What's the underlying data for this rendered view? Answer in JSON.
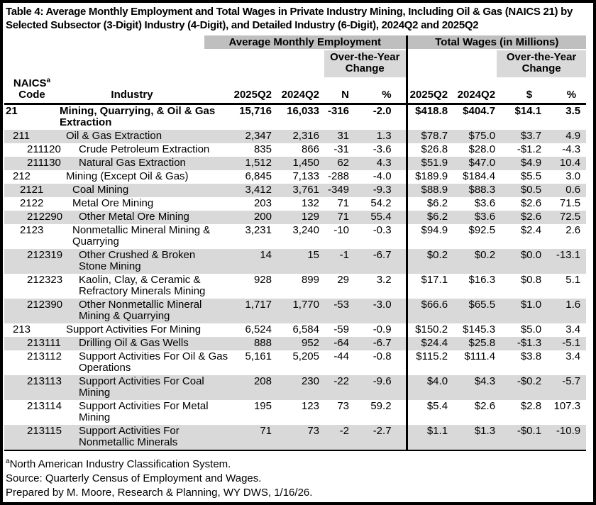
{
  "title": "Table 4: Average Monthly Employment and Total Wages in Private Industry Mining, Including Oil & Gas (NAICS 21) by Selected Subsector (3-Digit) Industry (4-Digit), and Detailed Industry (6-Digit), 2024Q2 and 2025Q2",
  "groups": {
    "employment": "Average Monthly Employment",
    "wages": "Total Wages (in Millions)",
    "oty_change": "Over-the-Year\nChange"
  },
  "header": {
    "naics": "NAICS",
    "naics_sup": "a",
    "code": "Code",
    "industry": "Industry",
    "emp_2025": "2025Q2",
    "emp_2024": "2024Q2",
    "emp_n": "N",
    "emp_pct": "%",
    "wage_2025": "2025Q2",
    "wage_2024": "2024Q2",
    "wage_dollar": "$",
    "wage_pct": "%"
  },
  "colors": {
    "band_dark": "#bfbfbf",
    "band_light": "#d9d9d9",
    "row_stripe": "#d9d9d9",
    "text": "#000000"
  },
  "rows": [
    {
      "code": "21",
      "level": 0,
      "bold": true,
      "industry": "Mining, Quarrying, & Oil & Gas\nExtraction",
      "e25": "15,716",
      "e24": "16,033",
      "n": "-316",
      "npct": "-2.0",
      "w25": "$418.8",
      "w24": "$404.7",
      "d": "$14.1",
      "dpct": "3.5"
    },
    {
      "code": "211",
      "level": 1,
      "bold": false,
      "industry": "Oil & Gas Extraction",
      "e25": "2,347",
      "e24": "2,316",
      "n": "31",
      "npct": "1.3",
      "w25": "$78.7",
      "w24": "$75.0",
      "d": "$3.7",
      "dpct": "4.9"
    },
    {
      "code": "211120",
      "level": 3,
      "bold": false,
      "industry": "Crude Petroleum Extraction",
      "e25": "835",
      "e24": "866",
      "n": "-31",
      "npct": "-3.6",
      "w25": "$26.8",
      "w24": "$28.0",
      "d": "-$1.2",
      "dpct": "-4.3"
    },
    {
      "code": "211130",
      "level": 3,
      "bold": false,
      "industry": "Natural Gas Extraction",
      "e25": "1,512",
      "e24": "1,450",
      "n": "62",
      "npct": "4.3",
      "w25": "$51.9",
      "w24": "$47.0",
      "d": "$4.9",
      "dpct": "10.4"
    },
    {
      "code": "212",
      "level": 1,
      "bold": false,
      "industry": "Mining (Except Oil & Gas)",
      "e25": "6,845",
      "e24": "7,133",
      "n": "-288",
      "npct": "-4.0",
      "w25": "$189.9",
      "w24": "$184.4",
      "d": "$5.5",
      "dpct": "3.0"
    },
    {
      "code": "2121",
      "level": 2,
      "bold": false,
      "industry": "Coal Mining",
      "e25": "3,412",
      "e24": "3,761",
      "n": "-349",
      "npct": "-9.3",
      "w25": "$88.9",
      "w24": "$88.3",
      "d": "$0.5",
      "dpct": "0.6"
    },
    {
      "code": "2122",
      "level": 2,
      "bold": false,
      "industry": "Metal Ore Mining",
      "e25": "203",
      "e24": "132",
      "n": "71",
      "npct": "54.2",
      "w25": "$6.2",
      "w24": "$3.6",
      "d": "$2.6",
      "dpct": "71.5"
    },
    {
      "code": "212290",
      "level": 3,
      "bold": false,
      "industry": "Other Metal Ore Mining",
      "e25": "200",
      "e24": "129",
      "n": "71",
      "npct": "55.4",
      "w25": "$6.2",
      "w24": "$3.6",
      "d": "$2.6",
      "dpct": "72.5"
    },
    {
      "code": "2123",
      "level": 2,
      "bold": false,
      "industry": "Nonmetallic Mineral Mining &\nQuarrying",
      "e25": "3,231",
      "e24": "3,240",
      "n": "-10",
      "npct": "-0.3",
      "w25": "$94.9",
      "w24": "$92.5",
      "d": "$2.4",
      "dpct": "2.6"
    },
    {
      "code": "212319",
      "level": 3,
      "bold": false,
      "industry": "Other Crushed & Broken\nStone Mining",
      "e25": "14",
      "e24": "15",
      "n": "-1",
      "npct": "-6.7",
      "w25": "$0.2",
      "w24": "$0.2",
      "d": "$0.0",
      "dpct": "-13.1"
    },
    {
      "code": "212323",
      "level": 3,
      "bold": false,
      "industry": "Kaolin, Clay, & Ceramic &\nRefractory Minerals Mining",
      "e25": "928",
      "e24": "899",
      "n": "29",
      "npct": "3.2",
      "w25": "$17.1",
      "w24": "$16.3",
      "d": "$0.8",
      "dpct": "5.1"
    },
    {
      "code": "212390",
      "level": 3,
      "bold": false,
      "industry": "Other Nonmetallic Mineral\nMining & Quarrying",
      "e25": "1,717",
      "e24": "1,770",
      "n": "-53",
      "npct": "-3.0",
      "w25": "$66.6",
      "w24": "$65.5",
      "d": "$1.0",
      "dpct": "1.6"
    },
    {
      "code": "213",
      "level": 1,
      "bold": false,
      "industry": "Support Activities For Mining",
      "e25": "6,524",
      "e24": "6,584",
      "n": "-59",
      "npct": "-0.9",
      "w25": "$150.2",
      "w24": "$145.3",
      "d": "$5.0",
      "dpct": "3.4"
    },
    {
      "code": "213111",
      "level": 3,
      "bold": false,
      "industry": "Drilling Oil & Gas Wells",
      "e25": "888",
      "e24": "952",
      "n": "-64",
      "npct": "-6.7",
      "w25": "$24.4",
      "w24": "$25.8",
      "d": "-$1.3",
      "dpct": "-5.1"
    },
    {
      "code": "213112",
      "level": 3,
      "bold": false,
      "industry": "Support Activities For Oil & Gas\nOperations",
      "e25": "5,161",
      "e24": "5,205",
      "n": "-44",
      "npct": "-0.8",
      "w25": "$115.2",
      "w24": "$111.4",
      "d": "$3.8",
      "dpct": "3.4"
    },
    {
      "code": "213113",
      "level": 3,
      "bold": false,
      "industry": "Support Activities For Coal\nMining",
      "e25": "208",
      "e24": "230",
      "n": "-22",
      "npct": "-9.6",
      "w25": "$4.0",
      "w24": "$4.3",
      "d": "-$0.2",
      "dpct": "-5.7"
    },
    {
      "code": "213114",
      "level": 3,
      "bold": false,
      "industry": "Support Activities For Metal\nMining",
      "e25": "195",
      "e24": "123",
      "n": "73",
      "npct": "59.2",
      "w25": "$5.4",
      "w24": "$2.6",
      "d": "$2.8",
      "dpct": "107.3"
    },
    {
      "code": "213115",
      "level": 3,
      "bold": false,
      "industry": "Support Activities For\nNonmetallic Minerals",
      "e25": "71",
      "e24": "73",
      "n": "-2",
      "npct": "-2.7",
      "w25": "$1.1",
      "w24": "$1.3",
      "d": "-$0.1",
      "dpct": "-10.9"
    }
  ],
  "footnotes": {
    "sup": "a",
    "line1": "North American Industry Classification System.",
    "line2": "Source: Quarterly Census of Employment and Wages.",
    "line3": "Prepared by M. Moore, Research & Planning, WY DWS, 1/16/26."
  }
}
